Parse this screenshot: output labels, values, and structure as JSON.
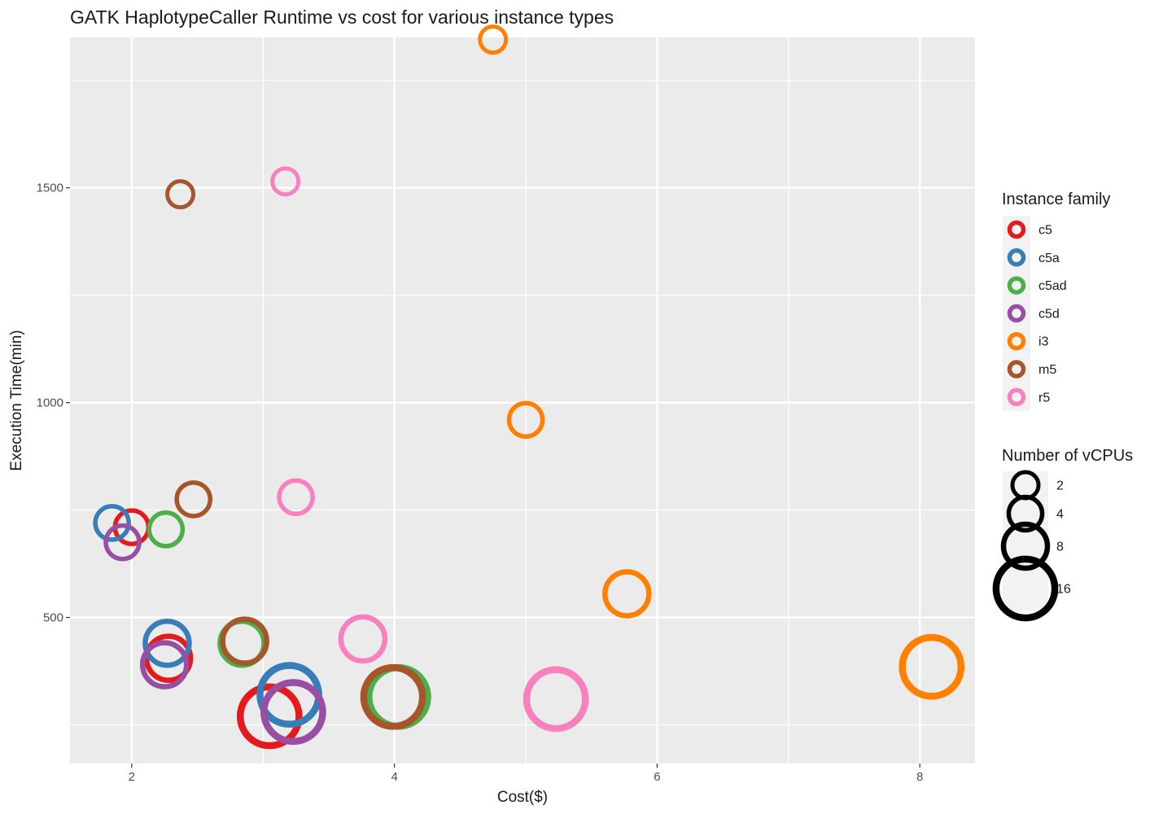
{
  "chart_data": {
    "type": "scatter",
    "title": "GATK HaplotypeCaller Runtime vs cost for various instance types",
    "xlabel": "Cost($)",
    "ylabel": "Execution Time(min)",
    "xlim": [
      1.53,
      8.42
    ],
    "ylim": [
      160,
      1850
    ],
    "x_ticks": [
      2,
      4,
      6,
      8
    ],
    "y_ticks": [
      500,
      1000,
      1500
    ],
    "grid": true,
    "legend_position": "right",
    "color_legend": {
      "title": "Instance family",
      "entries": [
        {
          "name": "c5",
          "color": "#e41a1c"
        },
        {
          "name": "c5a",
          "color": "#377eb8"
        },
        {
          "name": "c5ad",
          "color": "#4daf4a"
        },
        {
          "name": "c5d",
          "color": "#984ea3"
        },
        {
          "name": "i3",
          "color": "#ff7f00"
        },
        {
          "name": "m5",
          "color": "#a65628"
        },
        {
          "name": "r5",
          "color": "#f781bf"
        }
      ]
    },
    "size_legend": {
      "title": "Number of vCPUs",
      "entries": [
        2,
        4,
        8,
        16
      ]
    },
    "series": [
      {
        "name": "c5",
        "points": [
          {
            "x": 2.0,
            "y": 710,
            "vcpus": 4
          },
          {
            "x": 2.28,
            "y": 405,
            "vcpus": 8
          },
          {
            "x": 3.05,
            "y": 270,
            "vcpus": 16
          }
        ]
      },
      {
        "name": "c5a",
        "points": [
          {
            "x": 1.85,
            "y": 720,
            "vcpus": 4
          },
          {
            "x": 2.27,
            "y": 440,
            "vcpus": 8
          },
          {
            "x": 3.2,
            "y": 320,
            "vcpus": 16
          }
        ]
      },
      {
        "name": "c5ad",
        "points": [
          {
            "x": 2.26,
            "y": 705,
            "vcpus": 4
          },
          {
            "x": 2.84,
            "y": 440,
            "vcpus": 8
          },
          {
            "x": 4.03,
            "y": 315,
            "vcpus": 16
          }
        ]
      },
      {
        "name": "c5d",
        "points": [
          {
            "x": 1.93,
            "y": 675,
            "vcpus": 4
          },
          {
            "x": 2.25,
            "y": 390,
            "vcpus": 8
          },
          {
            "x": 3.23,
            "y": 280,
            "vcpus": 16
          }
        ]
      },
      {
        "name": "i3",
        "points": [
          {
            "x": 4.75,
            "y": 1845,
            "vcpus": 2
          },
          {
            "x": 5.0,
            "y": 960,
            "vcpus": 4
          },
          {
            "x": 5.77,
            "y": 555,
            "vcpus": 8
          },
          {
            "x": 8.09,
            "y": 385,
            "vcpus": 16
          }
        ]
      },
      {
        "name": "m5",
        "points": [
          {
            "x": 2.37,
            "y": 1485,
            "vcpus": 2
          },
          {
            "x": 2.47,
            "y": 775,
            "vcpus": 4
          },
          {
            "x": 2.86,
            "y": 445,
            "vcpus": 8
          },
          {
            "x": 3.99,
            "y": 315,
            "vcpus": 16
          }
        ]
      },
      {
        "name": "r5",
        "points": [
          {
            "x": 3.17,
            "y": 1515,
            "vcpus": 2
          },
          {
            "x": 3.25,
            "y": 780,
            "vcpus": 4
          },
          {
            "x": 3.76,
            "y": 450,
            "vcpus": 8
          },
          {
            "x": 5.23,
            "y": 310,
            "vcpus": 16
          }
        ]
      }
    ]
  }
}
